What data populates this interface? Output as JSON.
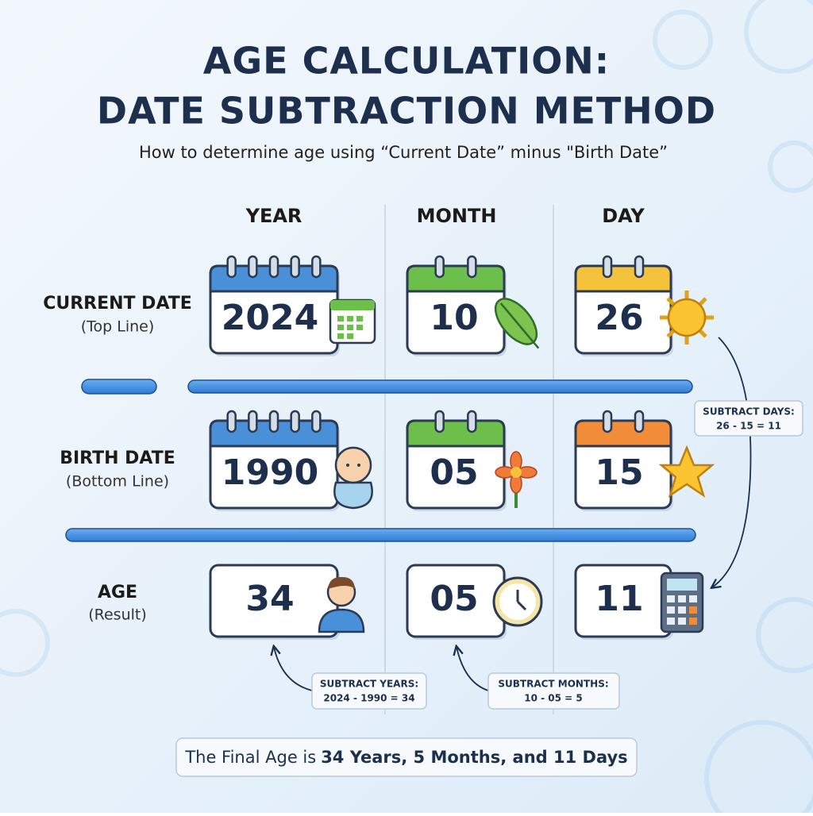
{
  "header": {
    "title_line1": "AGE CALCULATION:",
    "title_line2": "DATE SUBTRACTION METHOD",
    "subtitle": "How to determine age using “Current Date” minus \"Birth Date”"
  },
  "columns": [
    "YEAR",
    "MONTH",
    "DAY"
  ],
  "rows": [
    {
      "label": "CURRENT DATE",
      "sublabel": "(Top Line)",
      "cells": [
        "2024",
        "10",
        "26"
      ]
    },
    {
      "label": "BIRTH DATE",
      "sublabel": "(Bottom Line)",
      "cells": [
        "1990",
        "05",
        "15"
      ]
    },
    {
      "label": "AGE",
      "sublabel": "(Result)",
      "cells": [
        "34",
        "05",
        "11"
      ]
    }
  ],
  "notes": [
    {
      "title": "SUBTRACT YEARS:",
      "formula": "2024 - 1990 = 34"
    },
    {
      "title": "SUBTRACT MONTHS:",
      "formula": "10 - 05 = 5"
    },
    {
      "title": "SUBTRACT DAYS:",
      "formula": "26 - 15 = 11"
    }
  ],
  "summary": {
    "prefix": "The Final Age is",
    "bold": "34 Years, 5 Months, and 11 Days"
  }
}
